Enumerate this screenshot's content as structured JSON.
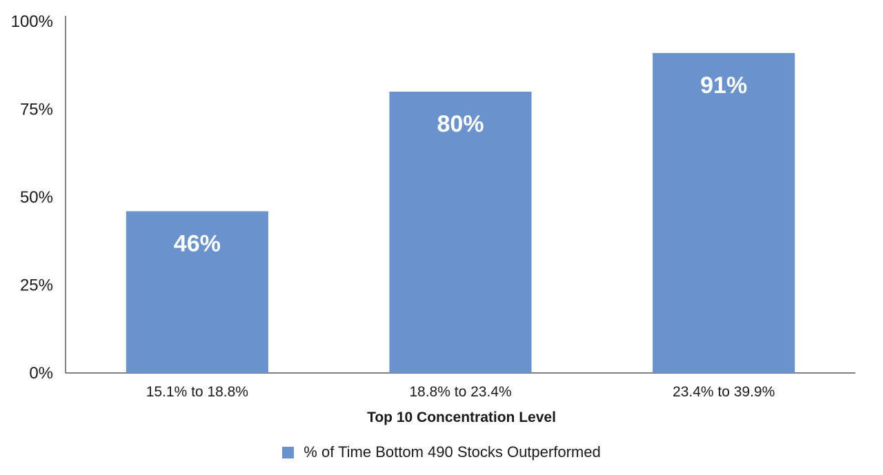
{
  "chart_data": {
    "type": "bar",
    "categories": [
      "15.1% to 18.8%",
      "18.8% to 23.4%",
      "23.4% to 39.9%"
    ],
    "series": [
      {
        "name": "% of Time Bottom 490 Stocks Outperformed",
        "values": [
          46,
          80,
          91
        ],
        "color": "#6a92cc"
      }
    ],
    "data_labels": [
      "46%",
      "80%",
      "91%"
    ],
    "xlabel": "Top 10 Concentration Level",
    "ylabel": "",
    "ylim": [
      0,
      100
    ],
    "yticks": [
      0,
      25,
      50,
      75,
      100
    ],
    "ytick_labels": [
      "0%",
      "25%",
      "50%",
      "75%",
      "100%"
    ],
    "grid": false,
    "legend_position": "bottom"
  }
}
